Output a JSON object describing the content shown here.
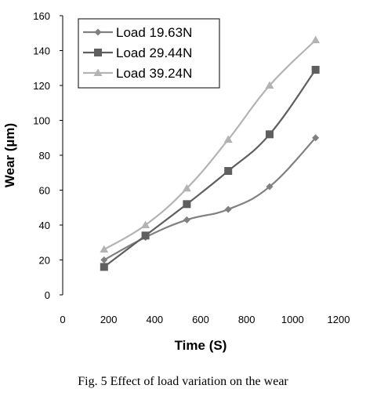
{
  "chart_data": {
    "type": "line",
    "x": [
      180,
      360,
      540,
      720,
      900,
      1100
    ],
    "series": [
      {
        "name": "Load 19.63N",
        "values": [
          20,
          33,
          43,
          49,
          62,
          90
        ],
        "color": "#808080",
        "marker": "diamond"
      },
      {
        "name": "Load 29.44N",
        "values": [
          16,
          34,
          52,
          71,
          92,
          129
        ],
        "color": "#5f5f5f",
        "marker": "square"
      },
      {
        "name": "Load 39.24N",
        "values": [
          26,
          40,
          61,
          89,
          120,
          146
        ],
        "color": "#b3b3b3",
        "marker": "triangle"
      }
    ],
    "xlabel": "Time (S)",
    "ylabel": "Wear  (µm)",
    "xlim": [
      0,
      1200
    ],
    "ylim": [
      0,
      160
    ],
    "xticks": [
      "0",
      "200",
      "400",
      "600",
      "800",
      "1000",
      "1200"
    ],
    "yticks": [
      "0",
      "20",
      "40",
      "60",
      "80",
      "100",
      "120",
      "140",
      "160"
    ],
    "grid": false,
    "legend_position": "top-left"
  },
  "caption": "Fig. 5 Effect of load variation on the wear"
}
